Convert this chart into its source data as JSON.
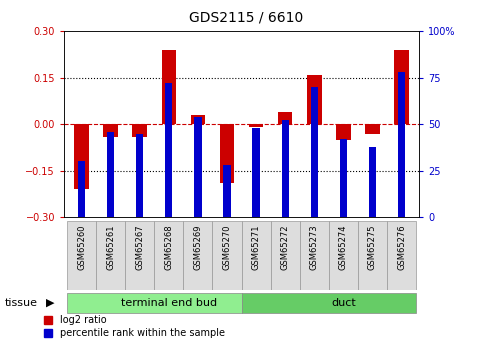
{
  "title": "GDS2115 / 6610",
  "samples": [
    "GSM65260",
    "GSM65261",
    "GSM65267",
    "GSM65268",
    "GSM65269",
    "GSM65270",
    "GSM65271",
    "GSM65272",
    "GSM65273",
    "GSM65274",
    "GSM65275",
    "GSM65276"
  ],
  "log2_ratio": [
    -0.21,
    -0.04,
    -0.04,
    0.24,
    0.03,
    -0.19,
    -0.01,
    0.04,
    0.16,
    -0.05,
    -0.03,
    0.24
  ],
  "percentile": [
    30,
    46,
    45,
    72,
    54,
    28,
    48,
    52,
    70,
    42,
    38,
    78
  ],
  "groups": [
    {
      "label": "terminal end bud",
      "start": 0,
      "end": 6,
      "color": "#90EE90"
    },
    {
      "label": "duct",
      "start": 6,
      "end": 12,
      "color": "#66CC66"
    }
  ],
  "ylim_left": [
    -0.3,
    0.3
  ],
  "ylim_right": [
    0,
    100
  ],
  "left_yticks": [
    -0.3,
    -0.15,
    0.0,
    0.15,
    0.3
  ],
  "right_yticks": [
    0,
    25,
    50,
    75,
    100
  ],
  "red_bar_width": 0.5,
  "blue_bar_width": 0.25,
  "red_color": "#CC0000",
  "blue_color": "#0000CC",
  "zero_line_color": "#CC0000",
  "dotted_line_color": "#000000",
  "background_color": "#FFFFFF",
  "tissue_label": "tissue",
  "legend_red": "log2 ratio",
  "legend_blue": "percentile rank within the sample",
  "figwidth": 4.93,
  "figheight": 3.45,
  "dpi": 100
}
